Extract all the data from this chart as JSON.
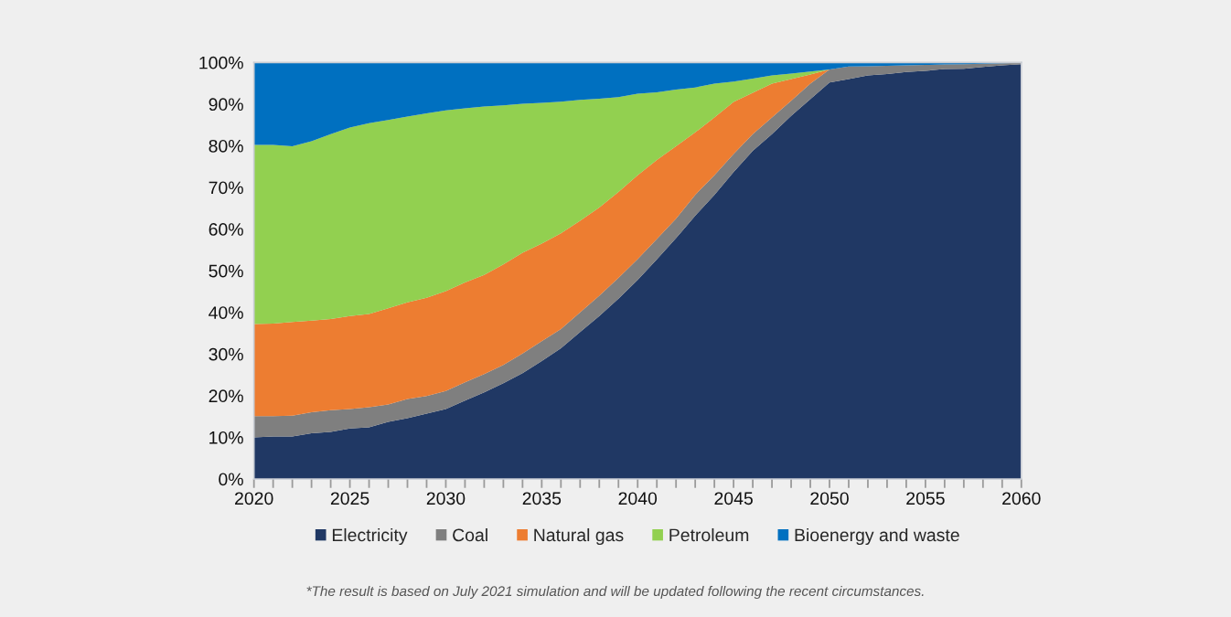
{
  "chart_data": {
    "type": "area",
    "stacked": true,
    "x": [
      2020,
      2021,
      2022,
      2023,
      2024,
      2025,
      2026,
      2027,
      2028,
      2029,
      2030,
      2031,
      2032,
      2033,
      2034,
      2035,
      2036,
      2037,
      2038,
      2039,
      2040,
      2041,
      2042,
      2043,
      2044,
      2045,
      2046,
      2047,
      2048,
      2049,
      2050,
      2051,
      2052,
      2053,
      2054,
      2055,
      2056,
      2057,
      2058,
      2059,
      2060
    ],
    "series": [
      {
        "name": "Electricity",
        "color": "#203864",
        "values": [
          10.0,
          10.2,
          10.2,
          11.0,
          11.3,
          12.1,
          12.4,
          13.7,
          14.6,
          15.7,
          16.8,
          18.8,
          20.8,
          23.0,
          25.4,
          28.3,
          31.4,
          35.3,
          39.1,
          43.3,
          47.8,
          52.7,
          57.8,
          63.2,
          68.2,
          73.7,
          78.8,
          82.8,
          87.2,
          91.2,
          95.2,
          96.0,
          96.9,
          97.2,
          97.7,
          98.0,
          98.4,
          98.5,
          98.9,
          99.3,
          99.6
        ]
      },
      {
        "name": "Coal",
        "color": "#7f7f7f",
        "values": [
          5.1,
          4.9,
          5.0,
          5.0,
          5.2,
          4.7,
          4.8,
          4.2,
          4.6,
          4.2,
          4.3,
          4.4,
          4.4,
          4.4,
          4.7,
          4.8,
          4.6,
          4.7,
          4.9,
          5.0,
          5.0,
          4.9,
          4.7,
          5.0,
          4.7,
          4.3,
          4.0,
          4.0,
          3.6,
          3.7,
          3.1,
          3.0,
          2.2,
          2.0,
          1.6,
          1.4,
          1.1,
          1.1,
          0.8,
          0.5,
          0.3
        ]
      },
      {
        "name": "Natural gas",
        "color": "#ed7d31",
        "values": [
          22.1,
          22.2,
          22.5,
          22.0,
          21.9,
          22.3,
          22.4,
          23.1,
          23.2,
          23.6,
          24.0,
          24.0,
          23.8,
          24.1,
          24.2,
          23.4,
          23.0,
          22.0,
          21.2,
          20.6,
          20.1,
          19.0,
          17.4,
          15.0,
          13.9,
          12.5,
          9.9,
          8.1,
          5.2,
          2.2,
          0,
          0,
          0,
          0,
          0,
          0,
          0,
          0,
          0,
          0,
          0
        ]
      },
      {
        "name": "Petroleum",
        "color": "#92d050",
        "values": [
          43.0,
          42.9,
          42.2,
          43.1,
          44.4,
          45.3,
          45.8,
          45.2,
          44.6,
          44.3,
          43.4,
          41.8,
          40.4,
          38.2,
          35.8,
          33.8,
          31.6,
          29.0,
          26.1,
          22.8,
          19.6,
          16.2,
          13.6,
          10.8,
          8.1,
          4.9,
          3.4,
          2.0,
          1.3,
          0.7,
          0,
          0,
          0,
          0,
          0,
          0,
          0,
          0,
          0,
          0,
          0
        ]
      },
      {
        "name": "Bioenergy and waste",
        "color": "#0070c0",
        "values": [
          19.8,
          19.8,
          20.1,
          18.9,
          17.2,
          15.6,
          14.6,
          13.8,
          13.0,
          12.2,
          11.5,
          11.0,
          10.6,
          10.3,
          9.9,
          9.7,
          9.4,
          9.0,
          8.7,
          8.3,
          7.5,
          7.2,
          6.5,
          6.0,
          5.1,
          4.6,
          3.9,
          3.1,
          2.7,
          2.2,
          1.7,
          1.0,
          0.9,
          0.8,
          0.7,
          0.6,
          0.5,
          0.4,
          0.3,
          0.2,
          0.1
        ]
      }
    ],
    "xlim": [
      2020,
      2060
    ],
    "xticks": [
      2020,
      {
        "value": 2021,
        "label": null
      },
      {
        "value": 2022,
        "label": null
      },
      {
        "value": 2023,
        "label": null
      },
      {
        "value": 2024,
        "label": null
      },
      2025,
      {
        "value": 2026,
        "label": null
      },
      {
        "value": 2027,
        "label": null
      },
      {
        "value": 2028,
        "label": null
      },
      {
        "value": 2029,
        "label": null
      },
      2030,
      {
        "value": 2031,
        "label": null
      },
      {
        "value": 2032,
        "label": null
      },
      {
        "value": 2033,
        "label": null
      },
      {
        "value": 2034,
        "label": null
      },
      2035,
      {
        "value": 2036,
        "label": null
      },
      {
        "value": 2037,
        "label": null
      },
      {
        "value": 2038,
        "label": null
      },
      {
        "value": 2039,
        "label": null
      },
      2040,
      {
        "value": 2041,
        "label": null
      },
      {
        "value": 2042,
        "label": null
      },
      {
        "value": 2043,
        "label": null
      },
      {
        "value": 2044,
        "label": null
      },
      2045,
      {
        "value": 2046,
        "label": null
      },
      {
        "value": 2047,
        "label": null
      },
      {
        "value": 2048,
        "label": null
      },
      {
        "value": 2049,
        "label": null
      },
      2050,
      {
        "value": 2051,
        "label": null
      },
      {
        "value": 2052,
        "label": null
      },
      {
        "value": 2053,
        "label": null
      },
      {
        "value": 2054,
        "label": null
      },
      2055,
      {
        "value": 2056,
        "label": null
      },
      {
        "value": 2057,
        "label": null
      },
      {
        "value": 2058,
        "label": null
      },
      {
        "value": 2059,
        "label": null
      },
      2060
    ],
    "ylim": [
      0,
      100
    ],
    "yticks": [
      {
        "value": 0,
        "label": "0%"
      },
      {
        "value": 10,
        "label": "10%"
      },
      {
        "value": 20,
        "label": "20%"
      },
      {
        "value": 30,
        "label": "30%"
      },
      {
        "value": 40,
        "label": "40%"
      },
      {
        "value": 50,
        "label": "50%"
      },
      {
        "value": 60,
        "label": "60%"
      },
      {
        "value": 70,
        "label": "70%"
      },
      {
        "value": 80,
        "label": "80%"
      },
      {
        "value": 90,
        "label": "90%"
      },
      {
        "value": 100,
        "label": "100%"
      }
    ],
    "legend": "bottom",
    "annotations": [
      "*The result is based on July 2021 simulation and will be updated following the recent circumstances."
    ]
  }
}
